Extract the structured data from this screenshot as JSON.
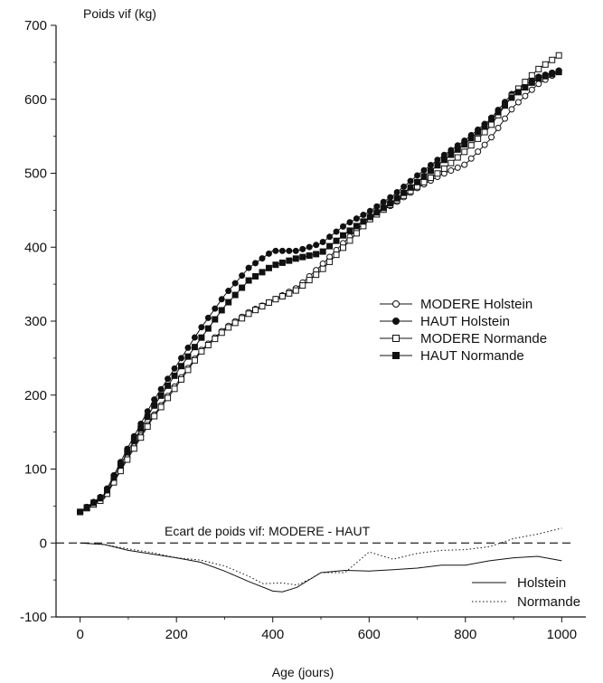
{
  "chart_data": {
    "type": "line",
    "ylabel": "Poids vif (kg)",
    "xlabel": "Age (jours)",
    "xlim": [
      -50,
      1050
    ],
    "ylim": [
      -100,
      700
    ],
    "xticks": [
      0,
      200,
      400,
      600,
      800,
      1000
    ],
    "yticks": [
      -100,
      0,
      100,
      200,
      300,
      400,
      500,
      600,
      700
    ],
    "grid": false,
    "legend_position": "right",
    "zero_line": {
      "y": 0,
      "style": "dashed"
    },
    "annotation": "Ecart de poids vif: MODERE - HAUT",
    "series": [
      {
        "name": "MODERE Holstein",
        "marker": "open-circle",
        "x": [
          0,
          50,
          100,
          150,
          200,
          250,
          300,
          350,
          400,
          450,
          500,
          550,
          600,
          650,
          700,
          750,
          800,
          850,
          900,
          950,
          1000
        ],
        "y": [
          42,
          62,
          118,
          170,
          215,
          260,
          290,
          312,
          328,
          345,
          375,
          408,
          440,
          458,
          480,
          498,
          512,
          545,
          590,
          620,
          640
        ]
      },
      {
        "name": "HAUT Holstein",
        "marker": "filled-circle",
        "x": [
          0,
          50,
          100,
          150,
          200,
          250,
          300,
          350,
          400,
          450,
          500,
          550,
          600,
          650,
          700,
          750,
          800,
          850,
          900,
          950,
          1000
        ],
        "y": [
          42,
          66,
          130,
          190,
          240,
          290,
          335,
          372,
          395,
          395,
          405,
          430,
          448,
          470,
          497,
          522,
          545,
          572,
          610,
          630,
          640
        ]
      },
      {
        "name": "MODERE Normande",
        "marker": "open-square",
        "x": [
          0,
          50,
          100,
          150,
          200,
          250,
          300,
          350,
          400,
          450,
          500,
          550,
          600,
          650,
          700,
          750,
          800,
          850,
          900,
          950,
          1000
        ],
        "y": [
          42,
          60,
          115,
          168,
          212,
          258,
          288,
          310,
          328,
          342,
          368,
          402,
          437,
          460,
          482,
          503,
          530,
          562,
          608,
          640,
          662
        ]
      },
      {
        "name": "HAUT Normande",
        "marker": "filled-square",
        "x": [
          0,
          50,
          100,
          150,
          200,
          250,
          300,
          350,
          400,
          450,
          500,
          550,
          600,
          650,
          700,
          750,
          800,
          850,
          900,
          950,
          1000
        ],
        "y": [
          42,
          64,
          125,
          182,
          230,
          276,
          320,
          355,
          375,
          385,
          392,
          418,
          440,
          462,
          488,
          515,
          540,
          570,
          605,
          628,
          638
        ]
      },
      {
        "name": "Holstein",
        "marker": "none",
        "line_style": "solid",
        "x": [
          0,
          50,
          100,
          150,
          200,
          250,
          300,
          350,
          400,
          420,
          450,
          480,
          500,
          550,
          600,
          650,
          700,
          750,
          800,
          850,
          900,
          950,
          1000
        ],
        "y": [
          0,
          -2,
          -10,
          -15,
          -20,
          -26,
          -38,
          -52,
          -65,
          -66,
          -60,
          -48,
          -40,
          -37,
          -38,
          -36,
          -34,
          -30,
          -30,
          -24,
          -20,
          -18,
          -24
        ]
      },
      {
        "name": "Normande",
        "marker": "none",
        "line_style": "dotted",
        "x": [
          0,
          50,
          100,
          150,
          200,
          250,
          300,
          350,
          380,
          420,
          450,
          480,
          500,
          550,
          600,
          650,
          700,
          750,
          800,
          850,
          900,
          950,
          1000
        ],
        "y": [
          0,
          -2,
          -8,
          -13,
          -20,
          -23,
          -31,
          -45,
          -55,
          -54,
          -57,
          -48,
          -40,
          -40,
          -12,
          -22,
          -14,
          -10,
          -9,
          -5,
          6,
          12,
          20
        ]
      }
    ]
  }
}
